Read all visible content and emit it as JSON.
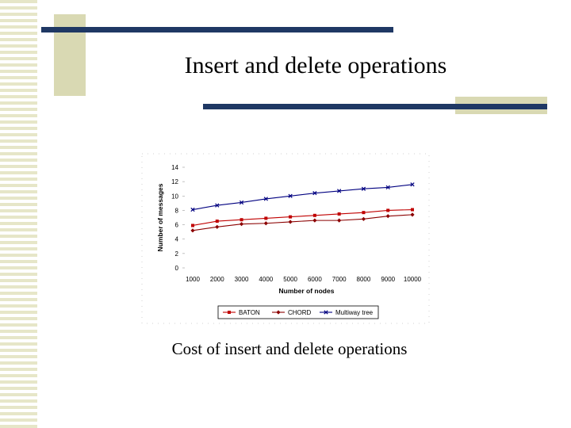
{
  "slide": {
    "title": "Insert and delete operations",
    "caption": "Cost of insert and delete operations"
  },
  "colors": {
    "accent_bar": "#1f3864",
    "accent_square": "#d9d9b3",
    "series_baton": "#c00000",
    "series_chord": "#8b0000",
    "series_multiway": "#000080"
  },
  "chart_data": {
    "type": "line",
    "xlabel": "Number of nodes",
    "ylabel": "Number of messages",
    "x": [
      1000,
      2000,
      3000,
      4000,
      5000,
      6000,
      7000,
      8000,
      9000,
      10000
    ],
    "x_tick_labels": [
      "1000",
      "2000",
      "3000",
      "4000",
      "5000",
      "6000",
      "7000",
      "8000",
      "9000",
      "10000"
    ],
    "ylim": [
      0,
      14
    ],
    "y_ticks": [
      0,
      2,
      4,
      6,
      8,
      10,
      12,
      14
    ],
    "legend_position": "bottom",
    "series": [
      {
        "name": "BATON",
        "color": "#c00000",
        "marker": "square",
        "values": [
          5.9,
          6.5,
          6.7,
          6.9,
          7.1,
          7.3,
          7.5,
          7.7,
          8.0,
          8.1
        ]
      },
      {
        "name": "CHORD",
        "color": "#8b0000",
        "marker": "diamond",
        "values": [
          5.2,
          5.7,
          6.1,
          6.2,
          6.4,
          6.6,
          6.6,
          6.8,
          7.2,
          7.4
        ]
      },
      {
        "name": "Multiway tree",
        "color": "#000080",
        "marker": "cross",
        "values": [
          8.1,
          8.7,
          9.1,
          9.6,
          10.0,
          10.4,
          10.7,
          11.0,
          11.2,
          11.6
        ]
      }
    ]
  }
}
